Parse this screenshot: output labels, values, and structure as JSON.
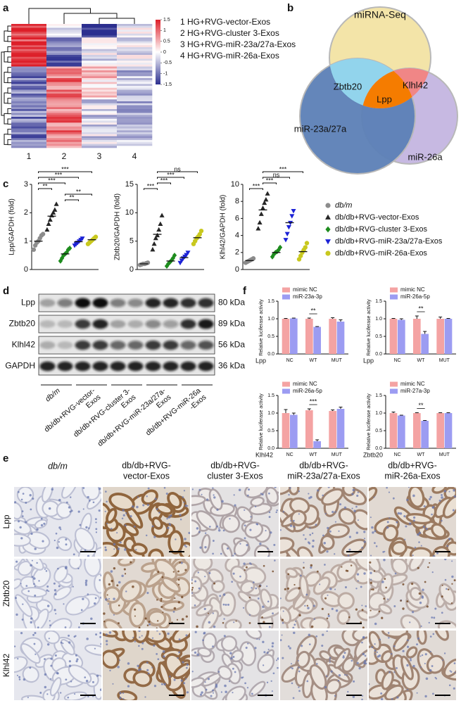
{
  "panels": [
    "a",
    "b",
    "c",
    "d",
    "e",
    "f"
  ],
  "heatmap": {
    "columns": [
      "1",
      "2",
      "3",
      "4"
    ],
    "scale_lim": [
      -1.5,
      1.5
    ],
    "scale_ticks": [
      1.5,
      1,
      0.5,
      0,
      -0.5,
      -1,
      -1.5
    ],
    "legend": [
      "1 HG+RVG-vector-Exos",
      "2 HG+RVG-cluster 3-Exos",
      "3 HG+RVG-miR-23a/27a-Exos",
      "4 HG+RVG-miR-26a-Exos"
    ]
  },
  "venn": {
    "sets": [
      "miRNA-Seq",
      "miR-23a/27a",
      "miR-26a"
    ],
    "overlaps": [
      "Zbtb20",
      "Klhl42",
      "Lpp"
    ]
  },
  "groups": [
    {
      "name": "db/m",
      "color": "#8c8c8c",
      "marker": "circle"
    },
    {
      "name": "db/db+RVG-vector-Exos",
      "color": "#262626",
      "marker": "triangle"
    },
    {
      "name": "db/db+RVG-cluster 3-Exos",
      "color": "#1e8c1e",
      "marker": "diamond"
    },
    {
      "name": "db/db+RVG-miR-23a/27a-Exos",
      "color": "#1c22d6",
      "marker": "triangle-down"
    },
    {
      "name": "db/db+RVG-miR-26a-Exos",
      "color": "#c8c81e",
      "marker": "circle"
    }
  ],
  "chart_data": [
    {
      "type": "dot",
      "ylabel": "Lpp/GAPDH (fold)",
      "ylim": [
        0,
        3
      ],
      "yticks": [
        0,
        1,
        2,
        3
      ],
      "means": [
        1.0,
        1.88,
        0.55,
        0.98,
        1.05
      ],
      "points": [
        [
          0.7,
          0.85,
          0.95,
          1.0,
          1.1,
          1.2,
          1.25
        ],
        [
          1.4,
          1.6,
          1.75,
          1.9,
          2.0,
          2.1,
          2.3
        ],
        [
          0.3,
          0.4,
          0.5,
          0.55,
          0.6,
          0.7,
          0.75
        ],
        [
          0.85,
          0.9,
          0.95,
          1.0,
          1.05,
          1.1
        ],
        [
          0.9,
          0.95,
          1.0,
          1.05,
          1.1,
          1.15
        ]
      ],
      "brackets": [
        {
          "from": 0,
          "to": 4,
          "label": "***"
        },
        {
          "from": 0,
          "to": 3,
          "label": "***"
        },
        {
          "from": 0,
          "to": 2,
          "label": "***"
        },
        {
          "from": 0,
          "to": 1,
          "label": "**"
        },
        {
          "from": 2,
          "to": 4,
          "label": "**"
        },
        {
          "from": 2,
          "to": 3,
          "label": "**"
        }
      ]
    },
    {
      "type": "dot",
      "ylabel": "Zbtb20/GAPDH (fold)",
      "ylim": [
        0,
        15
      ],
      "yticks": [
        0,
        5,
        10,
        15
      ],
      "means": [
        1.0,
        6.2,
        1.5,
        2.1,
        5.6
      ],
      "points": [
        [
          0.8,
          0.9,
          1.0,
          1.0,
          1.1,
          1.2
        ],
        [
          3.5,
          4.5,
          5.5,
          6.0,
          7.0,
          8.0,
          9.5
        ],
        [
          0.6,
          1.0,
          1.3,
          1.6,
          2.0,
          2.5
        ],
        [
          1.2,
          1.6,
          2.0,
          2.3,
          2.6,
          3.0
        ],
        [
          4.5,
          5.0,
          5.5,
          5.8,
          6.2,
          6.8
        ]
      ],
      "brackets": [
        {
          "from": 1,
          "to": 4,
          "label": "ns"
        },
        {
          "from": 1,
          "to": 3,
          "label": "***"
        },
        {
          "from": 1,
          "to": 2,
          "label": "***"
        },
        {
          "from": 0,
          "to": 1,
          "label": "***"
        }
      ]
    },
    {
      "type": "dot",
      "ylabel": "Klhl42/GAPDH (fold)",
      "ylim": [
        0,
        10
      ],
      "yticks": [
        0,
        2,
        4,
        6,
        8,
        10
      ],
      "means": [
        1.05,
        7.0,
        2.0,
        5.5,
        2.1
      ],
      "points": [
        [
          0.8,
          0.9,
          1.0,
          1.1,
          1.2,
          1.3
        ],
        [
          4.8,
          5.5,
          6.5,
          7.2,
          7.8,
          8.2,
          8.9
        ],
        [
          1.5,
          1.8,
          2.0,
          2.1,
          2.3,
          2.6
        ],
        [
          3.5,
          4.2,
          5.0,
          5.5,
          6.3,
          6.9
        ],
        [
          1.2,
          1.6,
          2.0,
          2.3,
          2.6,
          3.1
        ]
      ],
      "brackets": [
        {
          "from": 1,
          "to": 4,
          "label": "***"
        },
        {
          "from": 1,
          "to": 3,
          "label": "ns"
        },
        {
          "from": 1,
          "to": 2,
          "label": "***"
        },
        {
          "from": 0,
          "to": 1,
          "label": "***"
        }
      ]
    },
    {
      "type": "bar",
      "ylabel": "Relative luciferase activity",
      "xlabel": "Lpp",
      "categories": [
        "NC",
        "WT",
        "MUT"
      ],
      "ylim": [
        0,
        1.5
      ],
      "yticks": [
        {
          "value": 0,
          "label": "0.0"
        },
        0.5,
        {
          "value": 1,
          "label": "1.0"
        },
        1.5
      ],
      "series": [
        {
          "name": "mimic NC",
          "color": "#f4a3a3",
          "values": [
            1.0,
            1.0,
            1.0
          ],
          "errors": [
            0.01,
            0.02,
            0.03
          ]
        },
        {
          "name": "miR-23a-3p",
          "color": "#9c9cf2",
          "values": [
            1.01,
            0.77,
            0.92
          ],
          "errors": [
            0.01,
            0.01,
            0.05
          ]
        }
      ],
      "brackets": [
        {
          "category": 1,
          "label": "**"
        }
      ]
    },
    {
      "type": "bar",
      "ylabel": "Relative luciferase activity",
      "xlabel": "Lpp",
      "categories": [
        "NC",
        "WT",
        "MUT"
      ],
      "ylim": [
        0,
        1.5
      ],
      "yticks": [
        {
          "value": 0,
          "label": "0.0"
        },
        0.5,
        {
          "value": 1,
          "label": "1.0"
        },
        1.5
      ],
      "series": [
        {
          "name": "mimic NC",
          "color": "#f4a3a3",
          "values": [
            1.0,
            1.0,
            1.0
          ],
          "errors": [
            0.01,
            0.08,
            0.05
          ]
        },
        {
          "name": "miR-26a-5p",
          "color": "#9c9cf2",
          "values": [
            0.97,
            0.57,
            1.0
          ],
          "errors": [
            0.03,
            0.07,
            0.01
          ]
        }
      ],
      "brackets": [
        {
          "category": 1,
          "label": "**"
        }
      ]
    },
    {
      "type": "bar",
      "ylabel": "Relative luciferase activity",
      "xlabel": "Klhl42",
      "categories": [
        "NC",
        "WT",
        "MUT"
      ],
      "ylim": [
        0,
        1.5
      ],
      "yticks": [
        {
          "value": 0,
          "label": "0.0"
        },
        0.5,
        {
          "value": 1,
          "label": "1.0"
        },
        1.5
      ],
      "series": [
        {
          "name": "mimic NC",
          "color": "#f4a3a3",
          "values": [
            1.0,
            1.08,
            1.06
          ],
          "errors": [
            0.1,
            0.04,
            0.03
          ]
        },
        {
          "name": "miR-26a-5p",
          "color": "#9c9cf2",
          "values": [
            0.95,
            0.2,
            1.12
          ],
          "errors": [
            0.05,
            0.04,
            0.05
          ]
        }
      ],
      "brackets": [
        {
          "category": 1,
          "label": "***"
        }
      ]
    },
    {
      "type": "bar",
      "ylabel": "Relative luciferase activity",
      "xlabel": "Zbtb20",
      "categories": [
        "NC",
        "WT",
        "MUT"
      ],
      "ylim": [
        0,
        1.5
      ],
      "yticks": [
        {
          "value": 0,
          "label": "0.0"
        },
        0.5,
        {
          "value": 1,
          "label": "1.0"
        },
        1.5
      ],
      "series": [
        {
          "name": "mimic NC",
          "color": "#f4a3a3",
          "values": [
            1.0,
            1.0,
            1.0
          ],
          "errors": [
            0.03,
            0.01,
            0.01
          ]
        },
        {
          "name": "miR-27a-3p",
          "color": "#9c9cf2",
          "values": [
            0.93,
            0.78,
            1.0
          ],
          "errors": [
            0.01,
            0.01,
            0.01
          ]
        }
      ],
      "brackets": [
        {
          "category": 1,
          "label": "**"
        }
      ]
    }
  ],
  "blot": {
    "rows": [
      {
        "label": "Lpp",
        "size": "80 kDa"
      },
      {
        "label": "Zbtb20",
        "size": "89 kDa"
      },
      {
        "label": "Klhl42",
        "size": "56 kDa"
      },
      {
        "label": "GAPDH",
        "size": "36 kDa"
      }
    ],
    "groups": [
      [
        "db/m"
      ],
      [
        "db/db+RVG-vector-",
        "Exos"
      ],
      [
        "db/db+RVG-cluster 3-",
        "Exos"
      ],
      [
        "db/db+RVG-miR-23a/27a-",
        "Exos"
      ],
      [
        "db/db+RVG-miR-26a",
        "-Exos"
      ]
    ]
  },
  "ihc": {
    "columns": [
      [
        "db/m"
      ],
      [
        "db/db+RVG-",
        "vector-Exos"
      ],
      [
        "db/db+RVG-",
        "cluster 3-Exos"
      ],
      [
        "db/db+RVG-",
        "miR-23a/27a-Exos"
      ],
      [
        "db/db+RVG-",
        "miR-26a-Exos"
      ]
    ],
    "rows": [
      "Lpp",
      "Zbtb20",
      "Klhl42"
    ]
  }
}
